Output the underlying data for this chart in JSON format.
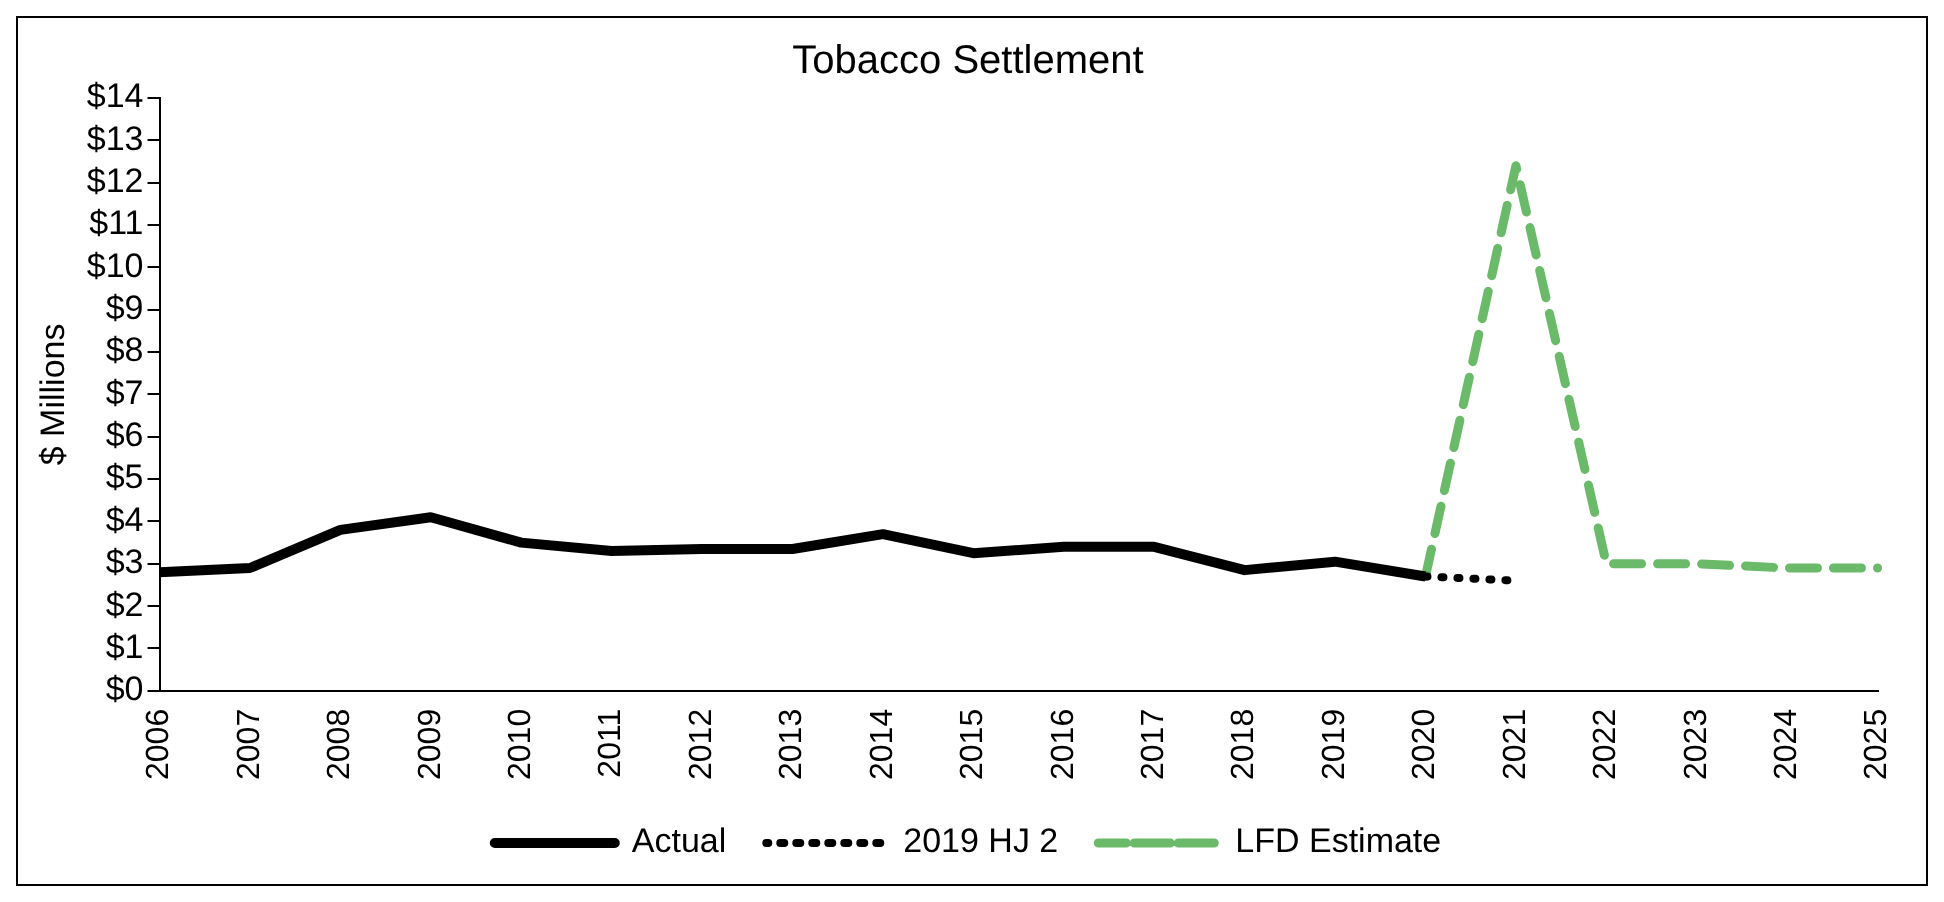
{
  "chart_data": {
    "type": "line",
    "title": "Tobacco Settlement",
    "ylabel": "$ Millions",
    "categories": [
      "2006",
      "2007",
      "2008",
      "2009",
      "2010",
      "2011",
      "2012",
      "2013",
      "2014",
      "2015",
      "2016",
      "2017",
      "2018",
      "2019",
      "2020",
      "2021",
      "2022",
      "2023",
      "2024",
      "2025"
    ],
    "series": [
      {
        "name": "Actual",
        "color": "#000000",
        "line_style": "solid",
        "values": [
          2.8,
          2.9,
          3.8,
          4.1,
          3.5,
          3.3,
          3.35,
          3.35,
          3.7,
          3.25,
          3.4,
          3.4,
          2.85,
          3.05,
          2.7,
          null,
          null,
          null,
          null,
          null
        ]
      },
      {
        "name": "2019 HJ 2",
        "color": "#000000",
        "line_style": "dotted",
        "values": [
          null,
          null,
          null,
          null,
          null,
          null,
          null,
          null,
          null,
          null,
          null,
          null,
          null,
          null,
          2.7,
          2.6,
          null,
          null,
          null,
          null
        ]
      },
      {
        "name": "LFD Estimate",
        "color": "#6aba6a",
        "line_style": "dashed",
        "values": [
          null,
          null,
          null,
          null,
          null,
          null,
          null,
          null,
          null,
          null,
          null,
          null,
          null,
          null,
          2.7,
          12.4,
          3.0,
          3.0,
          2.9,
          2.9
        ]
      }
    ],
    "ylim": [
      0,
      14
    ],
    "yticks": [
      {
        "value": 0,
        "label": "$0"
      },
      {
        "value": 1,
        "label": "$1"
      },
      {
        "value": 2,
        "label": "$2"
      },
      {
        "value": 3,
        "label": "$3"
      },
      {
        "value": 4,
        "label": "$4"
      },
      {
        "value": 5,
        "label": "$5"
      },
      {
        "value": 6,
        "label": "$6"
      },
      {
        "value": 7,
        "label": "$7"
      },
      {
        "value": 8,
        "label": "$8"
      },
      {
        "value": 9,
        "label": "$9"
      },
      {
        "value": 10,
        "label": "$10"
      },
      {
        "value": 11,
        "label": "$11"
      },
      {
        "value": 12,
        "label": "$12"
      },
      {
        "value": 13,
        "label": "$13"
      },
      {
        "value": 14,
        "label": "$14"
      }
    ],
    "grid": false,
    "legend": "bottom",
    "marker": "none"
  }
}
